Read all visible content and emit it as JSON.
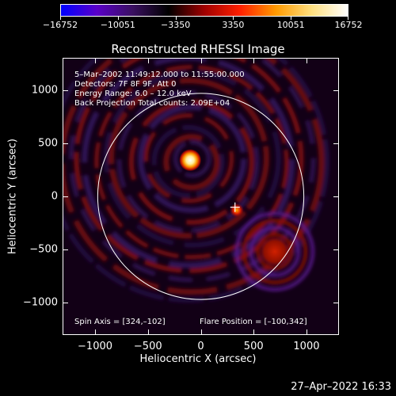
{
  "colorbar": {
    "tick_labels": [
      "−16752",
      "−10051",
      "−3350",
      "3350",
      "10051",
      "16752"
    ],
    "values": [
      -16752,
      -10051,
      -3350,
      3350,
      10051,
      16752
    ],
    "colors": [
      "#0000ff",
      "#5a00c8",
      "#3a1060",
      "#000000",
      "#a00000",
      "#ff2000",
      "#ff9a00",
      "#ffe080",
      "#ffffff"
    ]
  },
  "plot": {
    "title": "Reconstructed RHESSI Image",
    "info": {
      "time_range": "5–Mar–2002 11:49:12.000 to 11:55:00.000",
      "detectors": "Detectors: 7F 8F 9F, Att 0",
      "energy_range": "Energy Range: 6.0 – 12.0 keV",
      "method_counts": "Back Projection    Total counts: 2.09E+04",
      "spin_axis": "Spin Axis = [324,–102]",
      "flare_position": "Flare Position = [–100,342]"
    },
    "xlabel": "Heliocentric X (arcsec)",
    "ylabel": "Heliocentric Y (arcsec)",
    "x_tick_labels": [
      "−1000",
      "−500",
      "0",
      "500",
      "1000"
    ],
    "y_tick_labels": [
      "1000",
      "500",
      "0",
      "−500",
      "−1000"
    ]
  },
  "chart_data": {
    "type": "heatmap",
    "title": "Reconstructed RHESSI Image",
    "xlabel": "Heliocentric X (arcsec)",
    "ylabel": "Heliocentric Y (arcsec)",
    "xlim": [
      -1300,
      1300
    ],
    "ylim": [
      -1300,
      1300
    ],
    "x_ticks": [
      -1000,
      -500,
      0,
      500,
      1000
    ],
    "y_ticks": [
      -1000,
      -500,
      0,
      500,
      1000
    ],
    "colorbar_range": [
      -16752,
      16752
    ],
    "solar_limb_radius": 975,
    "bright_sources": [
      {
        "x": -100,
        "y": 342,
        "label": "flare"
      },
      {
        "x": 340,
        "y": -130
      },
      {
        "x": 700,
        "y": -520
      }
    ],
    "spin_axis_marker": {
      "x": 324,
      "y": -102
    }
  },
  "footer": {
    "timestamp": "27–Apr–2022 16:33"
  }
}
